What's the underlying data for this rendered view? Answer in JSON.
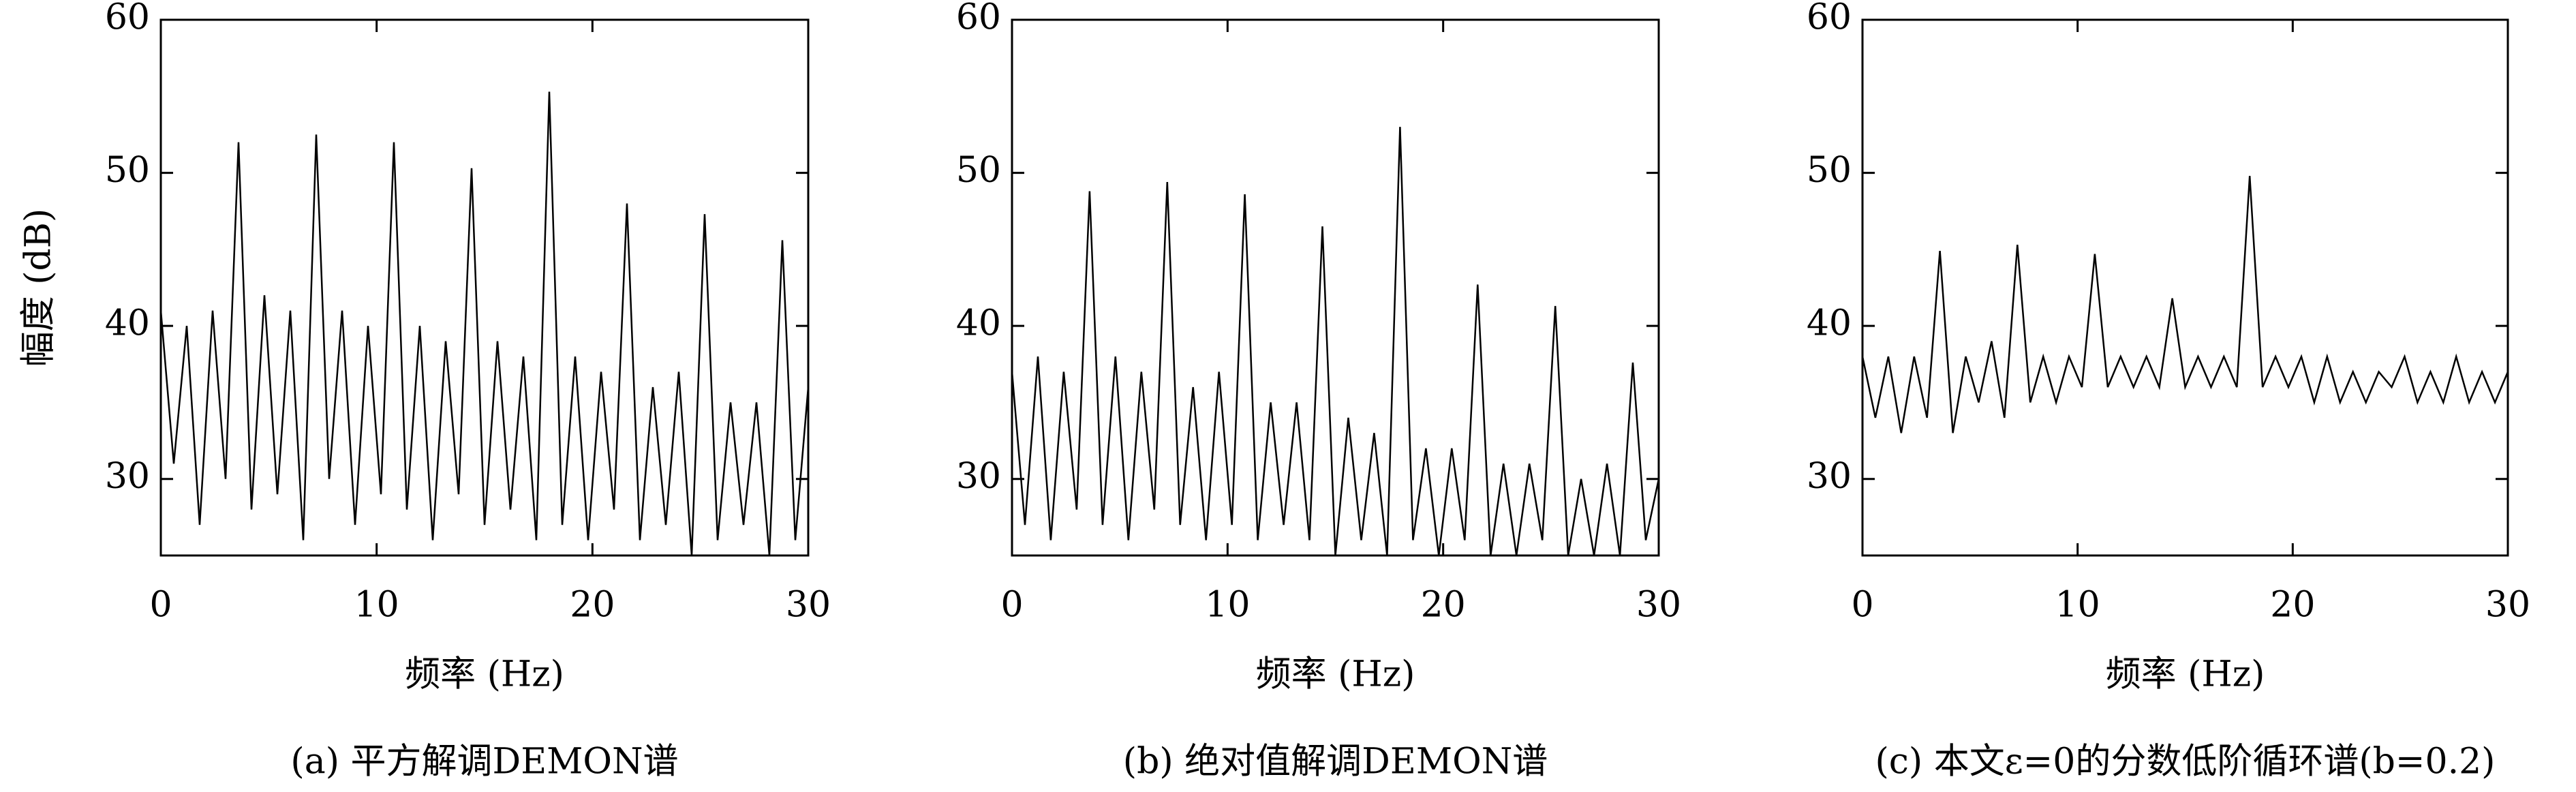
{
  "chart_data": [
    {
      "type": "line",
      "ylabel": "幅度 (dB)",
      "xlabel": "频率 (Hz)",
      "caption": "(a) 平方解调DEMON谱",
      "xlim": [
        0,
        30
      ],
      "xticks": [
        0,
        10,
        20,
        30
      ],
      "ylim": [
        25,
        60
      ],
      "yticks": [
        30,
        40,
        50,
        60
      ],
      "x": [
        0,
        0.6,
        1.2,
        1.8,
        2.4,
        3,
        3.6,
        4.2,
        4.8,
        5.4,
        6,
        6.6,
        7.2,
        7.8,
        8.4,
        9,
        9.6,
        10.2,
        10.8,
        11.4,
        12,
        12.6,
        13.2,
        13.8,
        14.4,
        15,
        15.6,
        16.2,
        16.8,
        17.4,
        18,
        18.6,
        19.2,
        19.8,
        20.4,
        21,
        21.6,
        22.2,
        22.8,
        23.4,
        24,
        24.6,
        25.2,
        25.8,
        26.4,
        27,
        27.6,
        28.2,
        28.8,
        29.4,
        30
      ],
      "series": [
        {
          "color": "#000000",
          "values": [
            41,
            31,
            40,
            27,
            41,
            30,
            52,
            28,
            42,
            29,
            41,
            26,
            52.5,
            30,
            41,
            27,
            40,
            29,
            52,
            28,
            40,
            26,
            39,
            29,
            50.3,
            27,
            39,
            28,
            38,
            26,
            55.3,
            27,
            38,
            26,
            37,
            28,
            48,
            26,
            36,
            27,
            37,
            25,
            47.3,
            26,
            35,
            27,
            35,
            25,
            45.6,
            26,
            36
          ]
        }
      ]
    },
    {
      "type": "line",
      "xlabel": "频率 (Hz)",
      "caption": "(b) 绝对值解调DEMON谱",
      "xlim": [
        0,
        30
      ],
      "xticks": [
        0,
        10,
        20,
        30
      ],
      "ylim": [
        25,
        60
      ],
      "yticks": [
        30,
        40,
        50,
        60
      ],
      "x": [
        0,
        0.6,
        1.2,
        1.8,
        2.4,
        3,
        3.6,
        4.2,
        4.8,
        5.4,
        6,
        6.6,
        7.2,
        7.8,
        8.4,
        9,
        9.6,
        10.2,
        10.8,
        11.4,
        12,
        12.6,
        13.2,
        13.8,
        14.4,
        15,
        15.6,
        16.2,
        16.8,
        17.4,
        18,
        18.6,
        19.2,
        19.8,
        20.4,
        21,
        21.6,
        22.2,
        22.8,
        23.4,
        24,
        24.6,
        25.2,
        25.8,
        26.4,
        27,
        27.6,
        28.2,
        28.8,
        29.4,
        30
      ],
      "series": [
        {
          "color": "#000000",
          "values": [
            37,
            27,
            38,
            26,
            37,
            28,
            48.8,
            27,
            38,
            26,
            37,
            28,
            49.4,
            27,
            36,
            26,
            37,
            27,
            48.6,
            26,
            35,
            27,
            35,
            26,
            46.5,
            25,
            34,
            26,
            33,
            25,
            53,
            26,
            32,
            25,
            32,
            26,
            42.7,
            25,
            31,
            25,
            31,
            26,
            41.3,
            25,
            30,
            25,
            31,
            25,
            37.6,
            26,
            30
          ]
        }
      ]
    },
    {
      "type": "line",
      "xlabel": "频率 (Hz)",
      "caption": "(c) 本文ε=0的分数低阶循环谱(b=0.2)",
      "xlim": [
        0,
        30
      ],
      "xticks": [
        0,
        10,
        20,
        30
      ],
      "ylim": [
        25,
        60
      ],
      "yticks": [
        30,
        40,
        50,
        60
      ],
      "x": [
        0,
        0.6,
        1.2,
        1.8,
        2.4,
        3,
        3.6,
        4.2,
        4.8,
        5.4,
        6,
        6.6,
        7.2,
        7.8,
        8.4,
        9,
        9.6,
        10.2,
        10.8,
        11.4,
        12,
        12.6,
        13.2,
        13.8,
        14.4,
        15,
        15.6,
        16.2,
        16.8,
        17.4,
        18,
        18.6,
        19.2,
        19.8,
        20.4,
        21,
        21.6,
        22.2,
        22.8,
        23.4,
        24,
        24.6,
        25.2,
        25.8,
        26.4,
        27,
        27.6,
        28.2,
        28.8,
        29.4,
        30
      ],
      "series": [
        {
          "color": "#000000",
          "values": [
            38,
            34,
            38,
            33,
            38,
            34,
            44.9,
            33,
            38,
            35,
            39,
            34,
            45.3,
            35,
            38,
            35,
            38,
            36,
            44.7,
            36,
            38,
            36,
            38,
            36,
            41.8,
            36,
            38,
            36,
            38,
            36,
            49.8,
            36,
            38,
            36,
            38,
            35,
            38,
            35,
            37,
            35,
            37,
            36,
            38,
            35,
            37,
            35,
            38,
            35,
            37,
            35,
            37
          ]
        }
      ]
    }
  ]
}
